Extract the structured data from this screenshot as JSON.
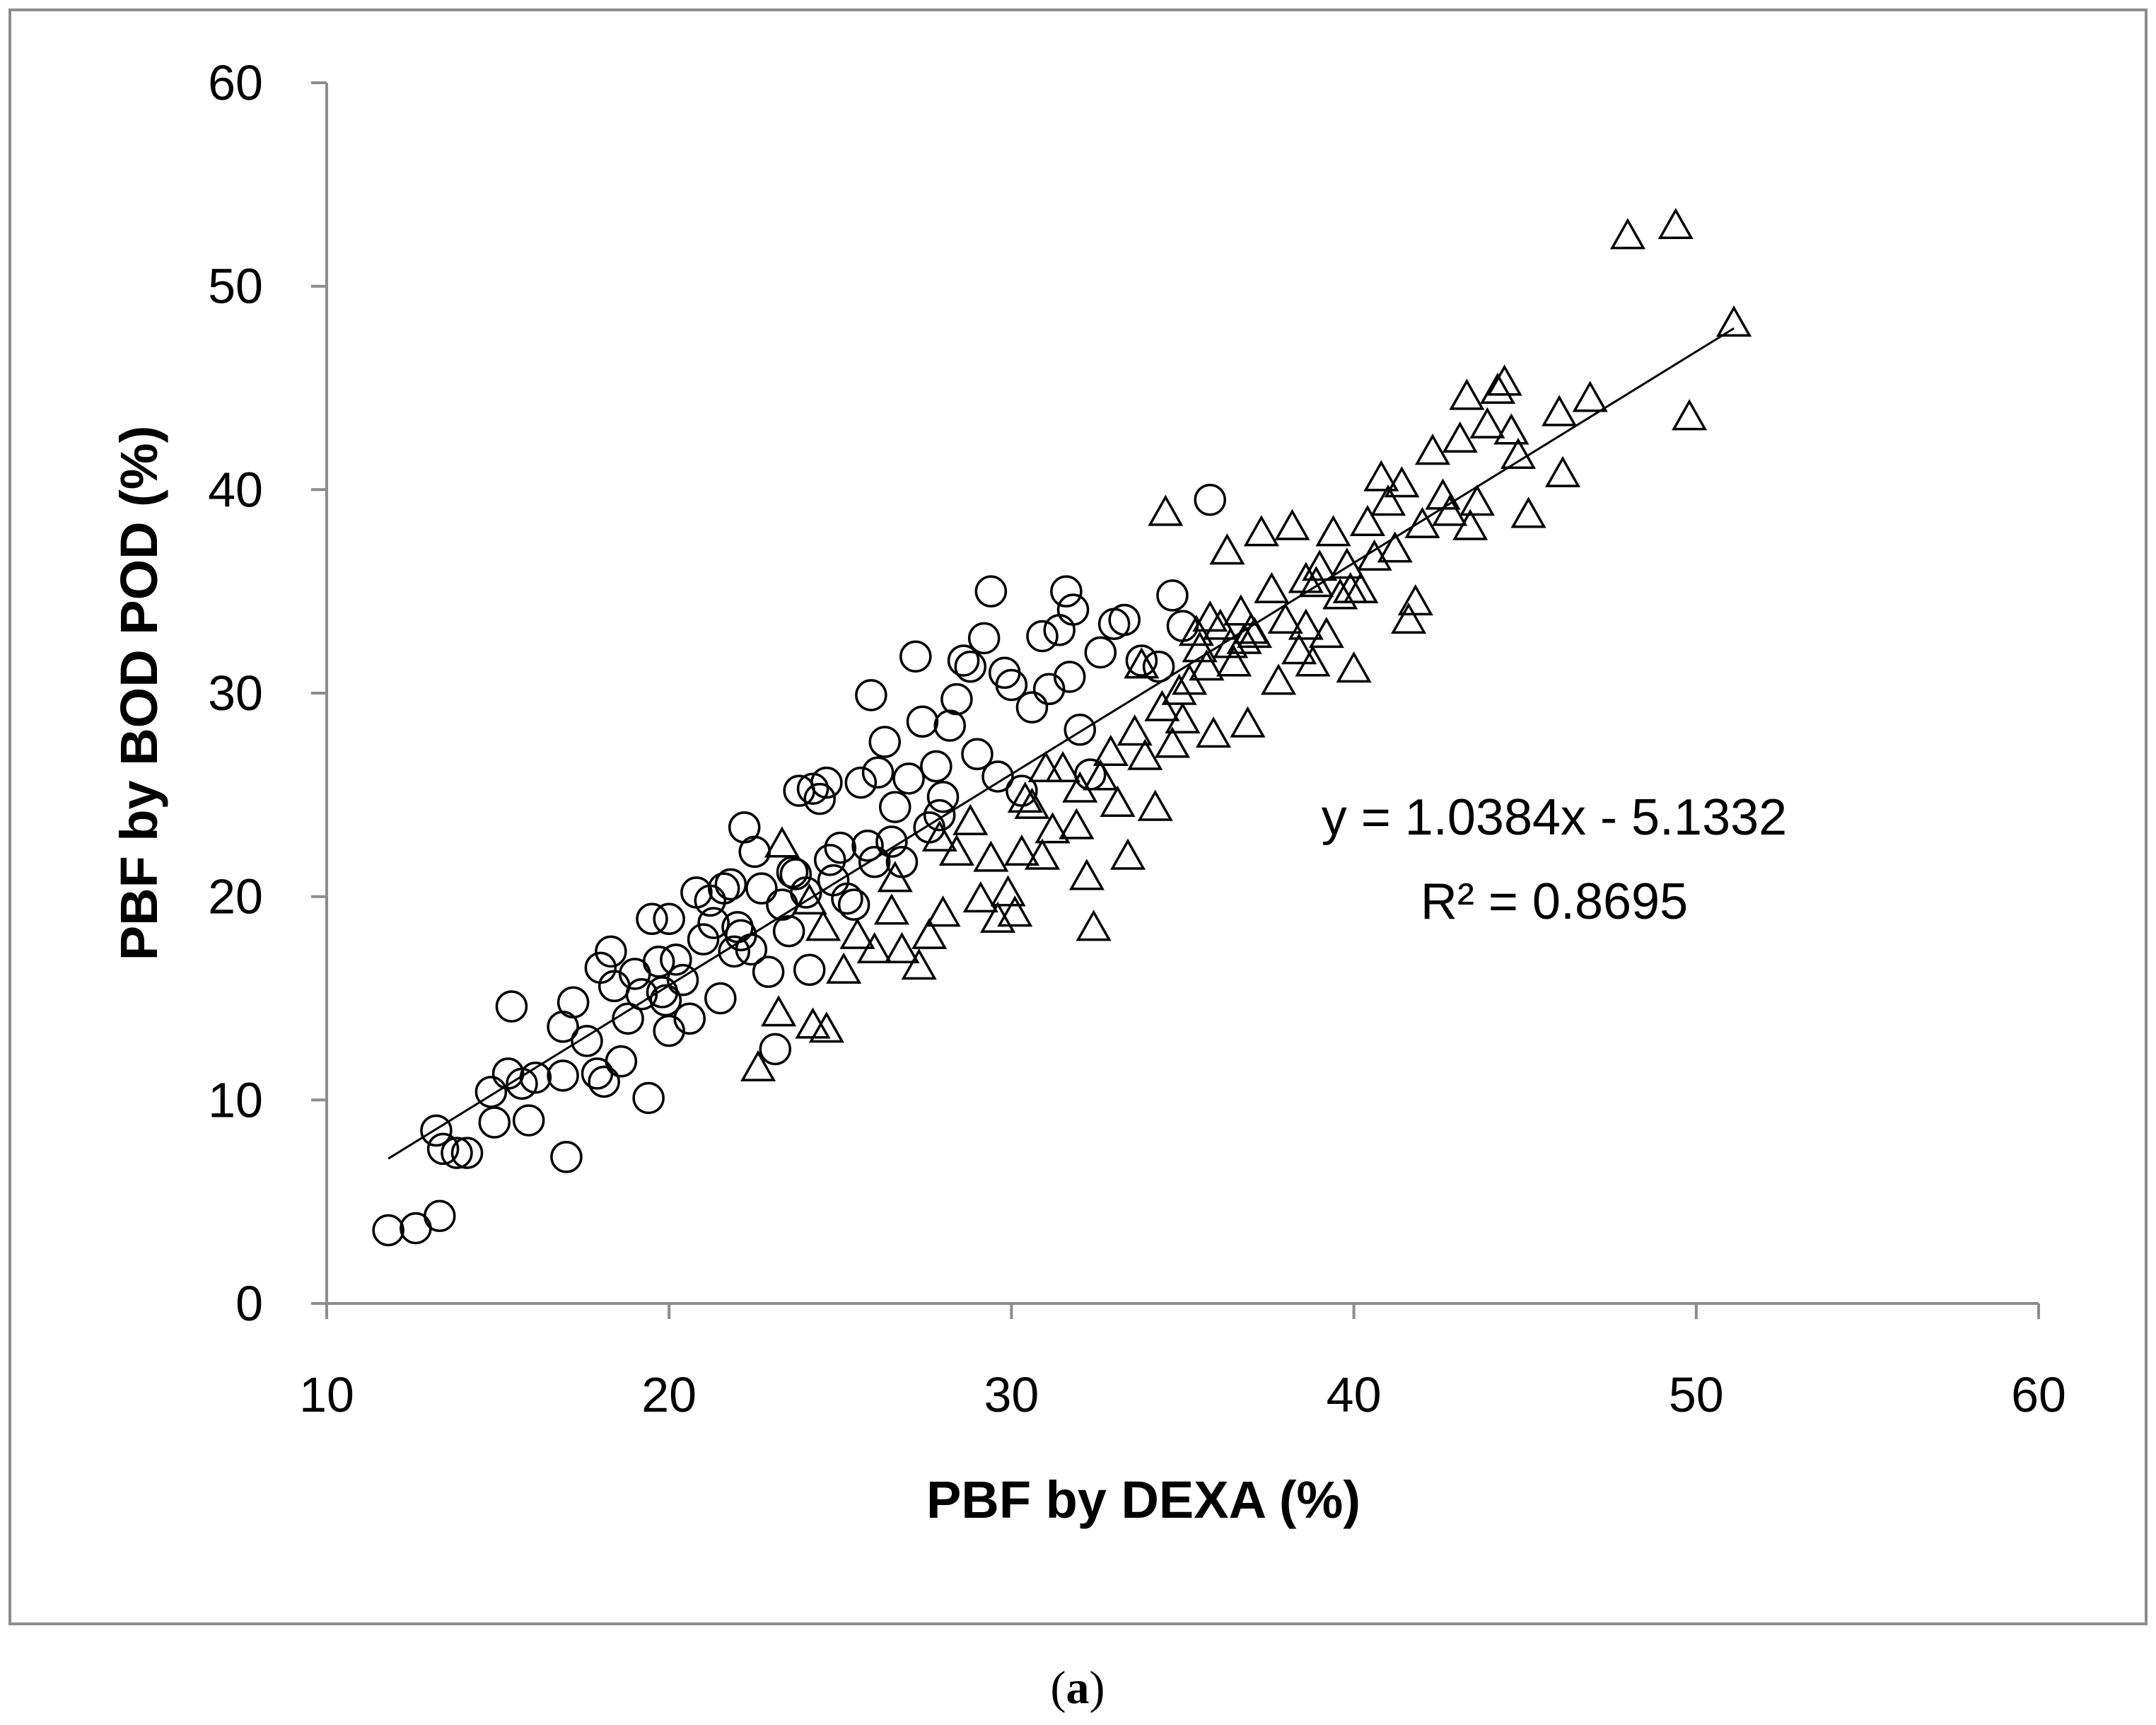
{
  "chart_data": {
    "type": "scatter",
    "title": "",
    "xlabel": "PBF by DEXA (%)",
    "ylabel": "PBF by BOD POD (%)",
    "xlim": [
      10,
      60
    ],
    "ylim": [
      0,
      60
    ],
    "x_ticks": [
      "10",
      "20",
      "30",
      "40",
      "50",
      "60"
    ],
    "y_ticks": [
      "0",
      "10",
      "20",
      "30",
      "40",
      "50",
      "60"
    ],
    "grid": false,
    "legend": "none",
    "marker_color": "#000000",
    "series": [
      {
        "marker": "circle",
        "points": [
          [
            11.8,
            3.6
          ],
          [
            12.6,
            3.7
          ],
          [
            13.3,
            4.3
          ],
          [
            13.2,
            8.5
          ],
          [
            13.4,
            7.6
          ],
          [
            13.8,
            7.4
          ],
          [
            14.1,
            7.4
          ],
          [
            14.8,
            10.4
          ],
          [
            14.9,
            8.9
          ],
          [
            15.3,
            11.3
          ],
          [
            15.4,
            14.6
          ],
          [
            15.7,
            10.8
          ],
          [
            15.9,
            9.0
          ],
          [
            16.1,
            11.1
          ],
          [
            16.9,
            13.6
          ],
          [
            16.9,
            11.2
          ],
          [
            17.0,
            7.2
          ],
          [
            17.2,
            14.8
          ],
          [
            17.6,
            12.9
          ],
          [
            17.9,
            11.3
          ],
          [
            18.0,
            16.5
          ],
          [
            18.1,
            10.9
          ],
          [
            18.3,
            17.3
          ],
          [
            18.4,
            15.6
          ],
          [
            18.6,
            11.9
          ],
          [
            18.8,
            14.0
          ],
          [
            19.0,
            16.2
          ],
          [
            19.2,
            15.2
          ],
          [
            19.4,
            10.1
          ],
          [
            19.5,
            18.9
          ],
          [
            19.7,
            16.8
          ],
          [
            19.8,
            15.3
          ],
          [
            19.9,
            14.9
          ],
          [
            20.0,
            13.4
          ],
          [
            20.0,
            18.9
          ],
          [
            20.4,
            15.9
          ],
          [
            20.6,
            14.0
          ],
          [
            20.8,
            20.2
          ],
          [
            21.0,
            17.9
          ],
          [
            21.2,
            19.8
          ],
          [
            21.5,
            15.0
          ],
          [
            21.6,
            20.4
          ],
          [
            21.8,
            20.6
          ],
          [
            21.9,
            17.3
          ],
          [
            22.1,
            18.1
          ],
          [
            22.2,
            23.4
          ],
          [
            22.4,
            17.4
          ],
          [
            22.5,
            22.2
          ],
          [
            22.7,
            20.4
          ],
          [
            22.9,
            16.3
          ],
          [
            23.1,
            12.5
          ],
          [
            23.3,
            19.6
          ],
          [
            23.5,
            18.3
          ],
          [
            23.7,
            21.1
          ],
          [
            23.8,
            25.2
          ],
          [
            24.0,
            20.2
          ],
          [
            24.1,
            16.4
          ],
          [
            24.2,
            25.3
          ],
          [
            24.4,
            24.8
          ],
          [
            24.6,
            25.6
          ],
          [
            24.8,
            20.8
          ],
          [
            25.0,
            22.4
          ],
          [
            25.2,
            19.9
          ],
          [
            25.4,
            19.6
          ],
          [
            25.6,
            25.6
          ],
          [
            25.8,
            22.5
          ],
          [
            25.9,
            29.9
          ],
          [
            26.1,
            26.1
          ],
          [
            26.3,
            27.6
          ],
          [
            26.5,
            22.7
          ],
          [
            26.6,
            24.4
          ],
          [
            26.8,
            21.7
          ],
          [
            27.0,
            25.8
          ],
          [
            27.2,
            31.8
          ],
          [
            27.4,
            28.6
          ],
          [
            27.6,
            23.4
          ],
          [
            27.8,
            26.4
          ],
          [
            28.0,
            24.9
          ],
          [
            28.2,
            28.4
          ],
          [
            28.4,
            29.7
          ],
          [
            28.6,
            31.6
          ],
          [
            28.8,
            31.3
          ],
          [
            29.0,
            27.0
          ],
          [
            29.2,
            32.7
          ],
          [
            29.4,
            35.0
          ],
          [
            29.6,
            25.9
          ],
          [
            29.8,
            31.0
          ],
          [
            30.0,
            30.4
          ],
          [
            30.3,
            25.2
          ],
          [
            30.6,
            29.3
          ],
          [
            30.9,
            32.8
          ],
          [
            31.1,
            30.2
          ],
          [
            31.4,
            33.1
          ],
          [
            31.6,
            35.0
          ],
          [
            31.7,
            30.8
          ],
          [
            31.8,
            34.1
          ],
          [
            32.0,
            28.2
          ],
          [
            32.3,
            26.0
          ],
          [
            32.6,
            32.0
          ],
          [
            33.0,
            33.4
          ],
          [
            33.3,
            33.6
          ],
          [
            33.8,
            31.6
          ],
          [
            34.3,
            31.3
          ],
          [
            34.7,
            34.8
          ],
          [
            35.0,
            33.3
          ],
          [
            35.8,
            39.5
          ],
          [
            22.0,
            18.5
          ],
          [
            21.3,
            18.7
          ],
          [
            20.2,
            16.9
          ],
          [
            24.7,
            21.8
          ],
          [
            26.0,
            21.7
          ],
          [
            27.9,
            24.0
          ],
          [
            23.6,
            21.2
          ]
        ]
      },
      {
        "marker": "triangle",
        "points": [
          [
            22.6,
            11.6
          ],
          [
            23.2,
            14.3
          ],
          [
            24.2,
            13.7
          ],
          [
            24.6,
            13.5
          ],
          [
            23.3,
            22.6
          ],
          [
            24.1,
            19.8
          ],
          [
            24.5,
            18.5
          ],
          [
            25.1,
            16.4
          ],
          [
            25.5,
            18.1
          ],
          [
            26.0,
            17.4
          ],
          [
            26.5,
            19.3
          ],
          [
            26.8,
            17.4
          ],
          [
            27.3,
            16.6
          ],
          [
            27.6,
            18.1
          ],
          [
            28.0,
            19.2
          ],
          [
            28.4,
            22.2
          ],
          [
            28.8,
            23.7
          ],
          [
            29.1,
            19.9
          ],
          [
            29.4,
            21.9
          ],
          [
            29.6,
            18.9
          ],
          [
            29.9,
            20.2
          ],
          [
            30.1,
            19.2
          ],
          [
            30.3,
            22.2
          ],
          [
            30.6,
            24.5
          ],
          [
            30.9,
            22.0
          ],
          [
            31.2,
            23.3
          ],
          [
            31.5,
            26.3
          ],
          [
            31.9,
            23.5
          ],
          [
            32.2,
            21.0
          ],
          [
            32.4,
            18.5
          ],
          [
            32.6,
            25.9
          ],
          [
            32.9,
            27.1
          ],
          [
            33.1,
            24.6
          ],
          [
            33.4,
            22.0
          ],
          [
            33.6,
            28.1
          ],
          [
            33.9,
            26.9
          ],
          [
            34.2,
            24.4
          ],
          [
            34.4,
            29.3
          ],
          [
            34.5,
            38.9
          ],
          [
            34.7,
            27.5
          ],
          [
            35.0,
            28.7
          ],
          [
            35.2,
            30.6
          ],
          [
            35.4,
            33.0
          ],
          [
            35.7,
            31.3
          ],
          [
            35.9,
            28.0
          ],
          [
            36.1,
            33.3
          ],
          [
            36.3,
            37.0
          ],
          [
            36.5,
            31.5
          ],
          [
            36.7,
            34.0
          ],
          [
            36.9,
            28.5
          ],
          [
            37.1,
            32.9
          ],
          [
            37.3,
            37.9
          ],
          [
            37.6,
            35.1
          ],
          [
            37.8,
            30.6
          ],
          [
            38.0,
            33.6
          ],
          [
            38.2,
            38.2
          ],
          [
            38.4,
            32.1
          ],
          [
            38.6,
            35.6
          ],
          [
            38.8,
            31.5
          ],
          [
            39.0,
            36.2
          ],
          [
            39.2,
            32.9
          ],
          [
            39.4,
            37.9
          ],
          [
            39.6,
            34.8
          ],
          [
            39.8,
            36.3
          ],
          [
            40.0,
            31.2
          ],
          [
            40.2,
            35.1
          ],
          [
            40.4,
            38.4
          ],
          [
            40.6,
            36.7
          ],
          [
            40.8,
            40.6
          ],
          [
            41.0,
            39.4
          ],
          [
            41.2,
            37.1
          ],
          [
            41.4,
            40.3
          ],
          [
            41.6,
            33.6
          ],
          [
            41.8,
            34.5
          ],
          [
            42.0,
            38.3
          ],
          [
            42.3,
            41.9
          ],
          [
            42.6,
            39.7
          ],
          [
            42.8,
            38.9
          ],
          [
            43.1,
            42.5
          ],
          [
            43.3,
            44.6
          ],
          [
            43.4,
            38.2
          ],
          [
            43.6,
            39.4
          ],
          [
            43.9,
            43.2
          ],
          [
            44.2,
            44.9
          ],
          [
            44.4,
            45.3
          ],
          [
            44.6,
            42.9
          ],
          [
            44.8,
            41.7
          ],
          [
            45.1,
            38.8
          ],
          [
            46.0,
            43.8
          ],
          [
            46.1,
            40.8
          ],
          [
            46.9,
            44.5
          ],
          [
            48.0,
            52.5
          ],
          [
            49.4,
            53.0
          ],
          [
            49.8,
            43.6
          ],
          [
            51.1,
            48.2
          ],
          [
            36.4,
            32.4
          ],
          [
            37.0,
            33.1
          ],
          [
            35.8,
            33.7
          ],
          [
            38.9,
            35.4
          ],
          [
            39.9,
            35.1
          ],
          [
            33.8,
            31.4
          ],
          [
            34.9,
            30.1
          ],
          [
            27.9,
            22.9
          ],
          [
            26.6,
            20.9
          ],
          [
            31.0,
            26.3
          ],
          [
            32.0,
            25.3
          ],
          [
            30.4,
            24.8
          ],
          [
            35.5,
            32.2
          ],
          [
            36.8,
            32.6
          ],
          [
            38.6,
            33.3
          ]
        ]
      }
    ],
    "trendline": {
      "slope": 1.0384,
      "intercept": -5.1332,
      "x_range": [
        11.8,
        51.1
      ]
    },
    "annotations": [
      "y = 1.0384x - 5.1332",
      "R² = 0.8695"
    ]
  },
  "caption": {
    "open": "(",
    "letter": "a",
    "close": ")"
  }
}
